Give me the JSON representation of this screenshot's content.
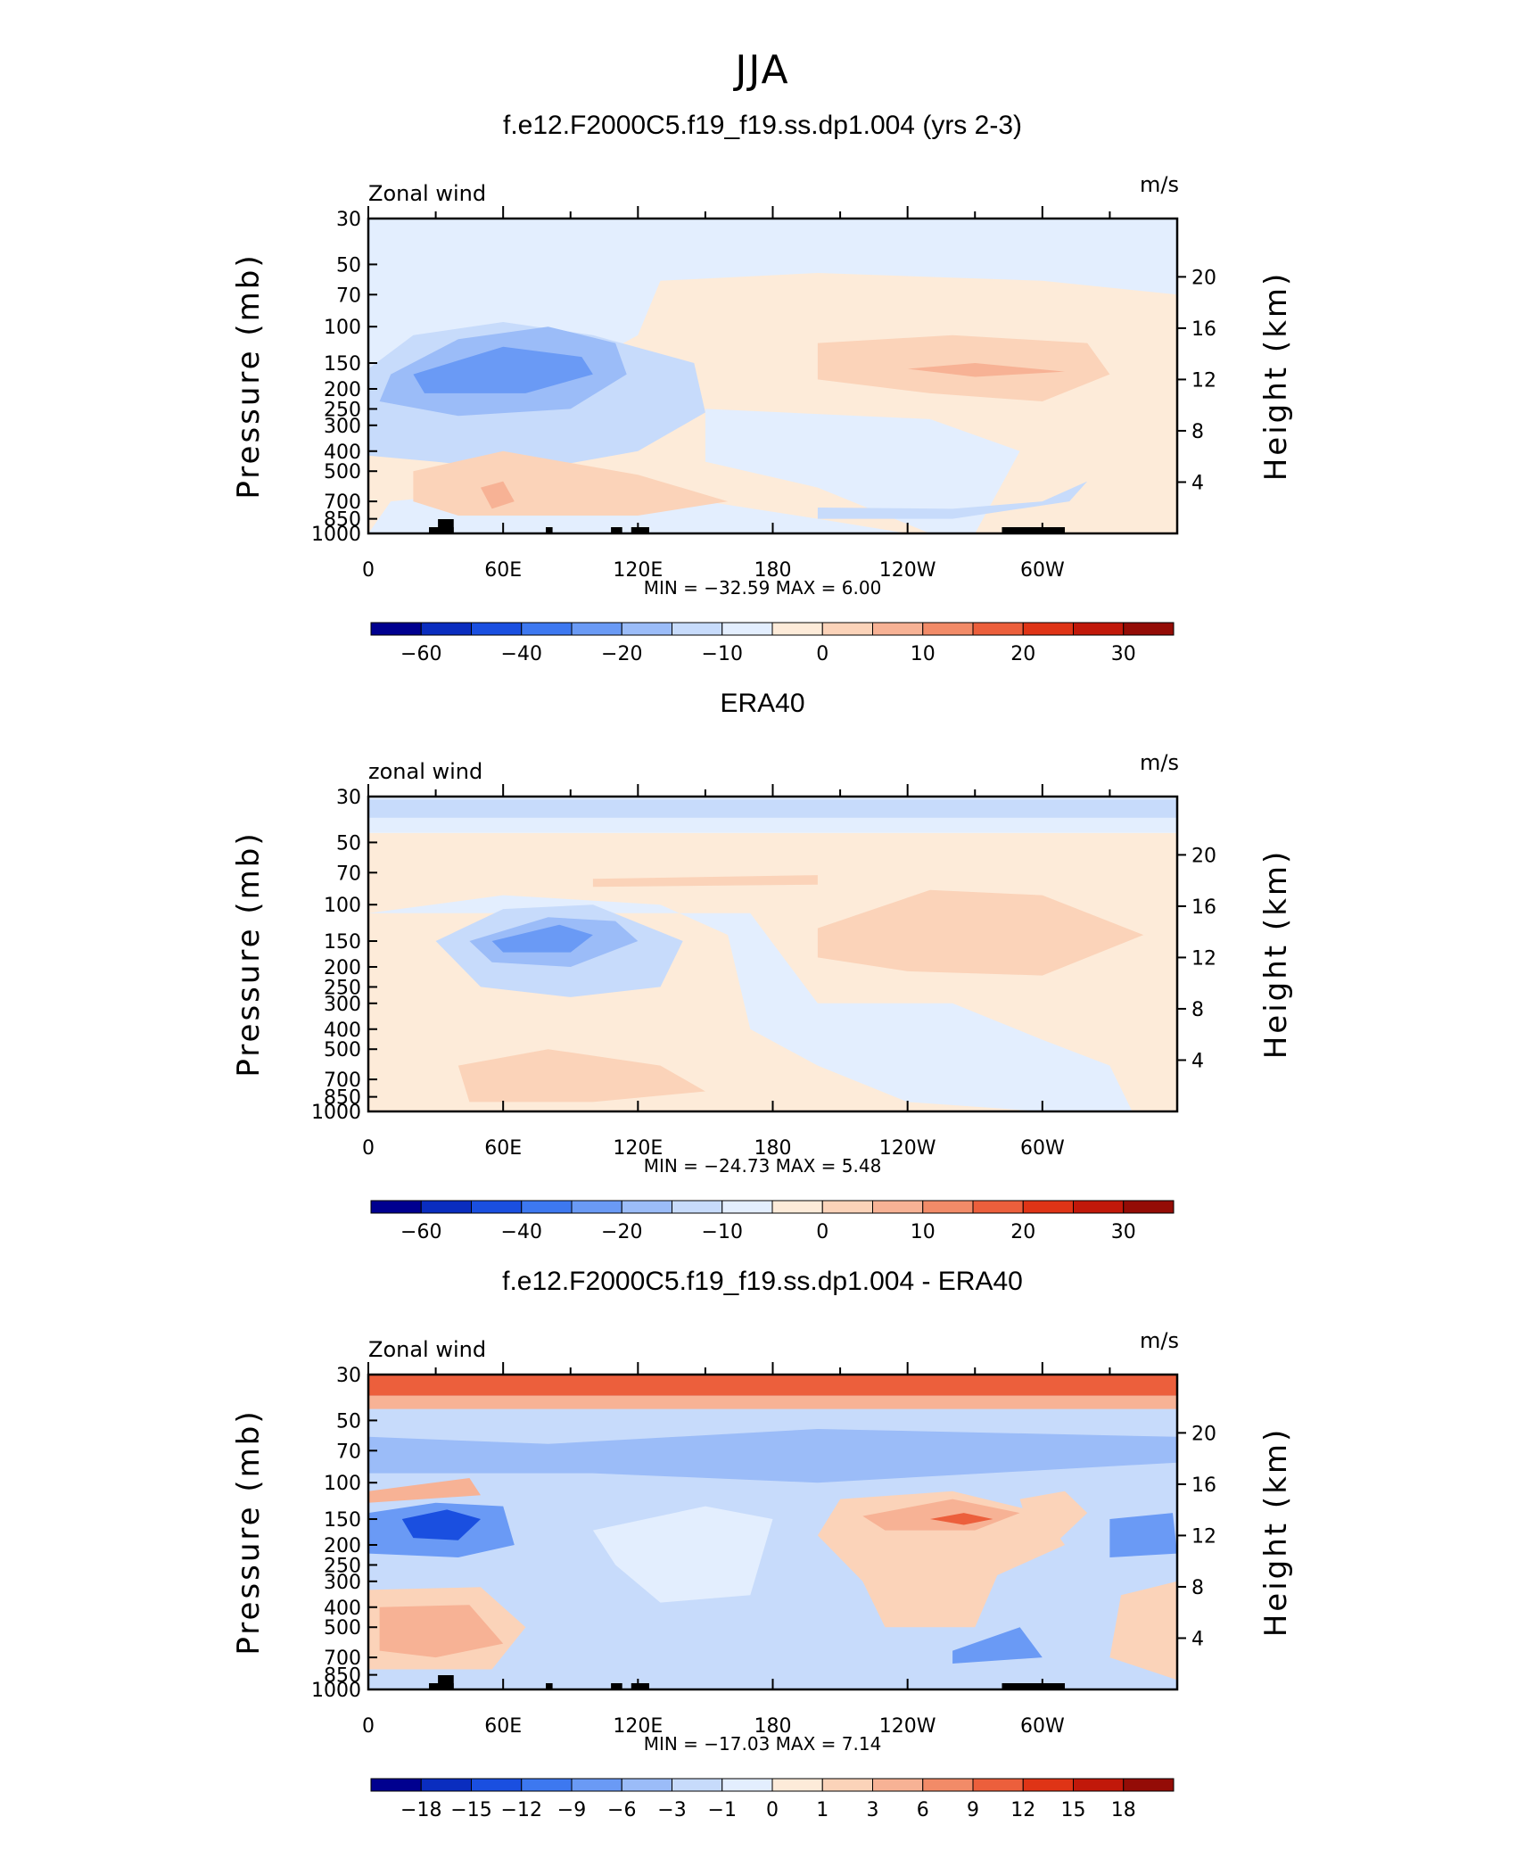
{
  "figure": {
    "title": "JJA",
    "season": "JJA",
    "colors": {
      "diverging": [
        "#00008f",
        "#0a2dbf",
        "#1a4fe0",
        "#3d78f0",
        "#6a9af5",
        "#9bbcf8",
        "#c7dbfb",
        "#e3eefe",
        "#fdebd9",
        "#fbd3b9",
        "#f7b295",
        "#f28b68",
        "#ec5f3c",
        "#df3416",
        "#c1180a",
        "#940c06"
      ]
    },
    "panels": [
      {
        "title": "f.e12.F2000C5.f19_f19.ss.dp1.004 (yrs 2-3)",
        "variable_label": "Zonal wind",
        "units": "m/s",
        "stats": "MIN = −32.59   MAX =     6.00",
        "colorbar_labels": [
          "−60",
          "−40",
          "−20",
          "−10",
          "0",
          "10",
          "20",
          "30"
        ],
        "has_topography": true
      },
      {
        "title": "ERA40",
        "variable_label": "zonal wind",
        "units": "m/s",
        "stats": "MIN = −24.73   MAX =     5.48",
        "colorbar_labels": [
          "−60",
          "−40",
          "−20",
          "−10",
          "0",
          "10",
          "20",
          "30"
        ],
        "has_topography": false
      },
      {
        "title": "f.e12.F2000C5.f19_f19.ss.dp1.004 - ERA40",
        "variable_label": "Zonal wind",
        "units": "m/s",
        "stats": "MIN = −17.03   MAX =     7.14",
        "colorbar_labels": [
          "−18",
          "−15",
          "−12",
          "−9",
          "−6",
          "−3",
          "−1",
          "0",
          "1",
          "3",
          "6",
          "9",
          "12",
          "15",
          "18"
        ],
        "has_topography": true
      }
    ],
    "y_axis_label": "Pressure (mb)",
    "y2_axis_label": "Height (km)",
    "pressure_ticks": [
      "30",
      "50",
      "70",
      "100",
      "150",
      "200",
      "250",
      "300",
      "400",
      "500",
      "700",
      "850",
      "1000"
    ],
    "height_ticks": [
      "20",
      "16",
      "12",
      "8",
      "4"
    ],
    "lon_ticks": [
      "0",
      "60E",
      "120E",
      "180",
      "120W",
      "60W"
    ]
  },
  "chart_data": [
    {
      "type": "heatmap",
      "title": "f.e12.F2000C5.f19_f19.ss.dp1.004 (yrs 2-3)",
      "xlabel": "",
      "ylabel": "Pressure (mb)",
      "y2label": "Height (km)",
      "x_ticks": [
        "0",
        "60E",
        "120E",
        "180",
        "120W",
        "60W"
      ],
      "xlim": [
        0,
        360
      ],
      "ylim": [
        1000,
        30
      ],
      "yscale": "log",
      "min": -32.59,
      "max": 6.0,
      "levels": [
        -60,
        -40,
        -20,
        -10,
        0,
        10,
        20,
        30
      ]
    },
    {
      "type": "heatmap",
      "title": "ERA40",
      "xlabel": "",
      "ylabel": "Pressure (mb)",
      "y2label": "Height (km)",
      "x_ticks": [
        "0",
        "60E",
        "120E",
        "180",
        "120W",
        "60W"
      ],
      "xlim": [
        0,
        360
      ],
      "ylim": [
        1000,
        30
      ],
      "yscale": "log",
      "min": -24.73,
      "max": 5.48,
      "levels": [
        -60,
        -40,
        -20,
        -10,
        0,
        10,
        20,
        30
      ]
    },
    {
      "type": "heatmap",
      "title": "f.e12.F2000C5.f19_f19.ss.dp1.004 - ERA40",
      "xlabel": "",
      "ylabel": "Pressure (mb)",
      "y2label": "Height (km)",
      "x_ticks": [
        "0",
        "60E",
        "120E",
        "180",
        "120W",
        "60W"
      ],
      "xlim": [
        0,
        360
      ],
      "ylim": [
        1000,
        30
      ],
      "yscale": "log",
      "min": -17.03,
      "max": 7.14,
      "levels": [
        -18,
        -15,
        -12,
        -9,
        -6,
        -3,
        -1,
        0,
        1,
        3,
        6,
        9,
        12,
        15,
        18
      ]
    }
  ]
}
